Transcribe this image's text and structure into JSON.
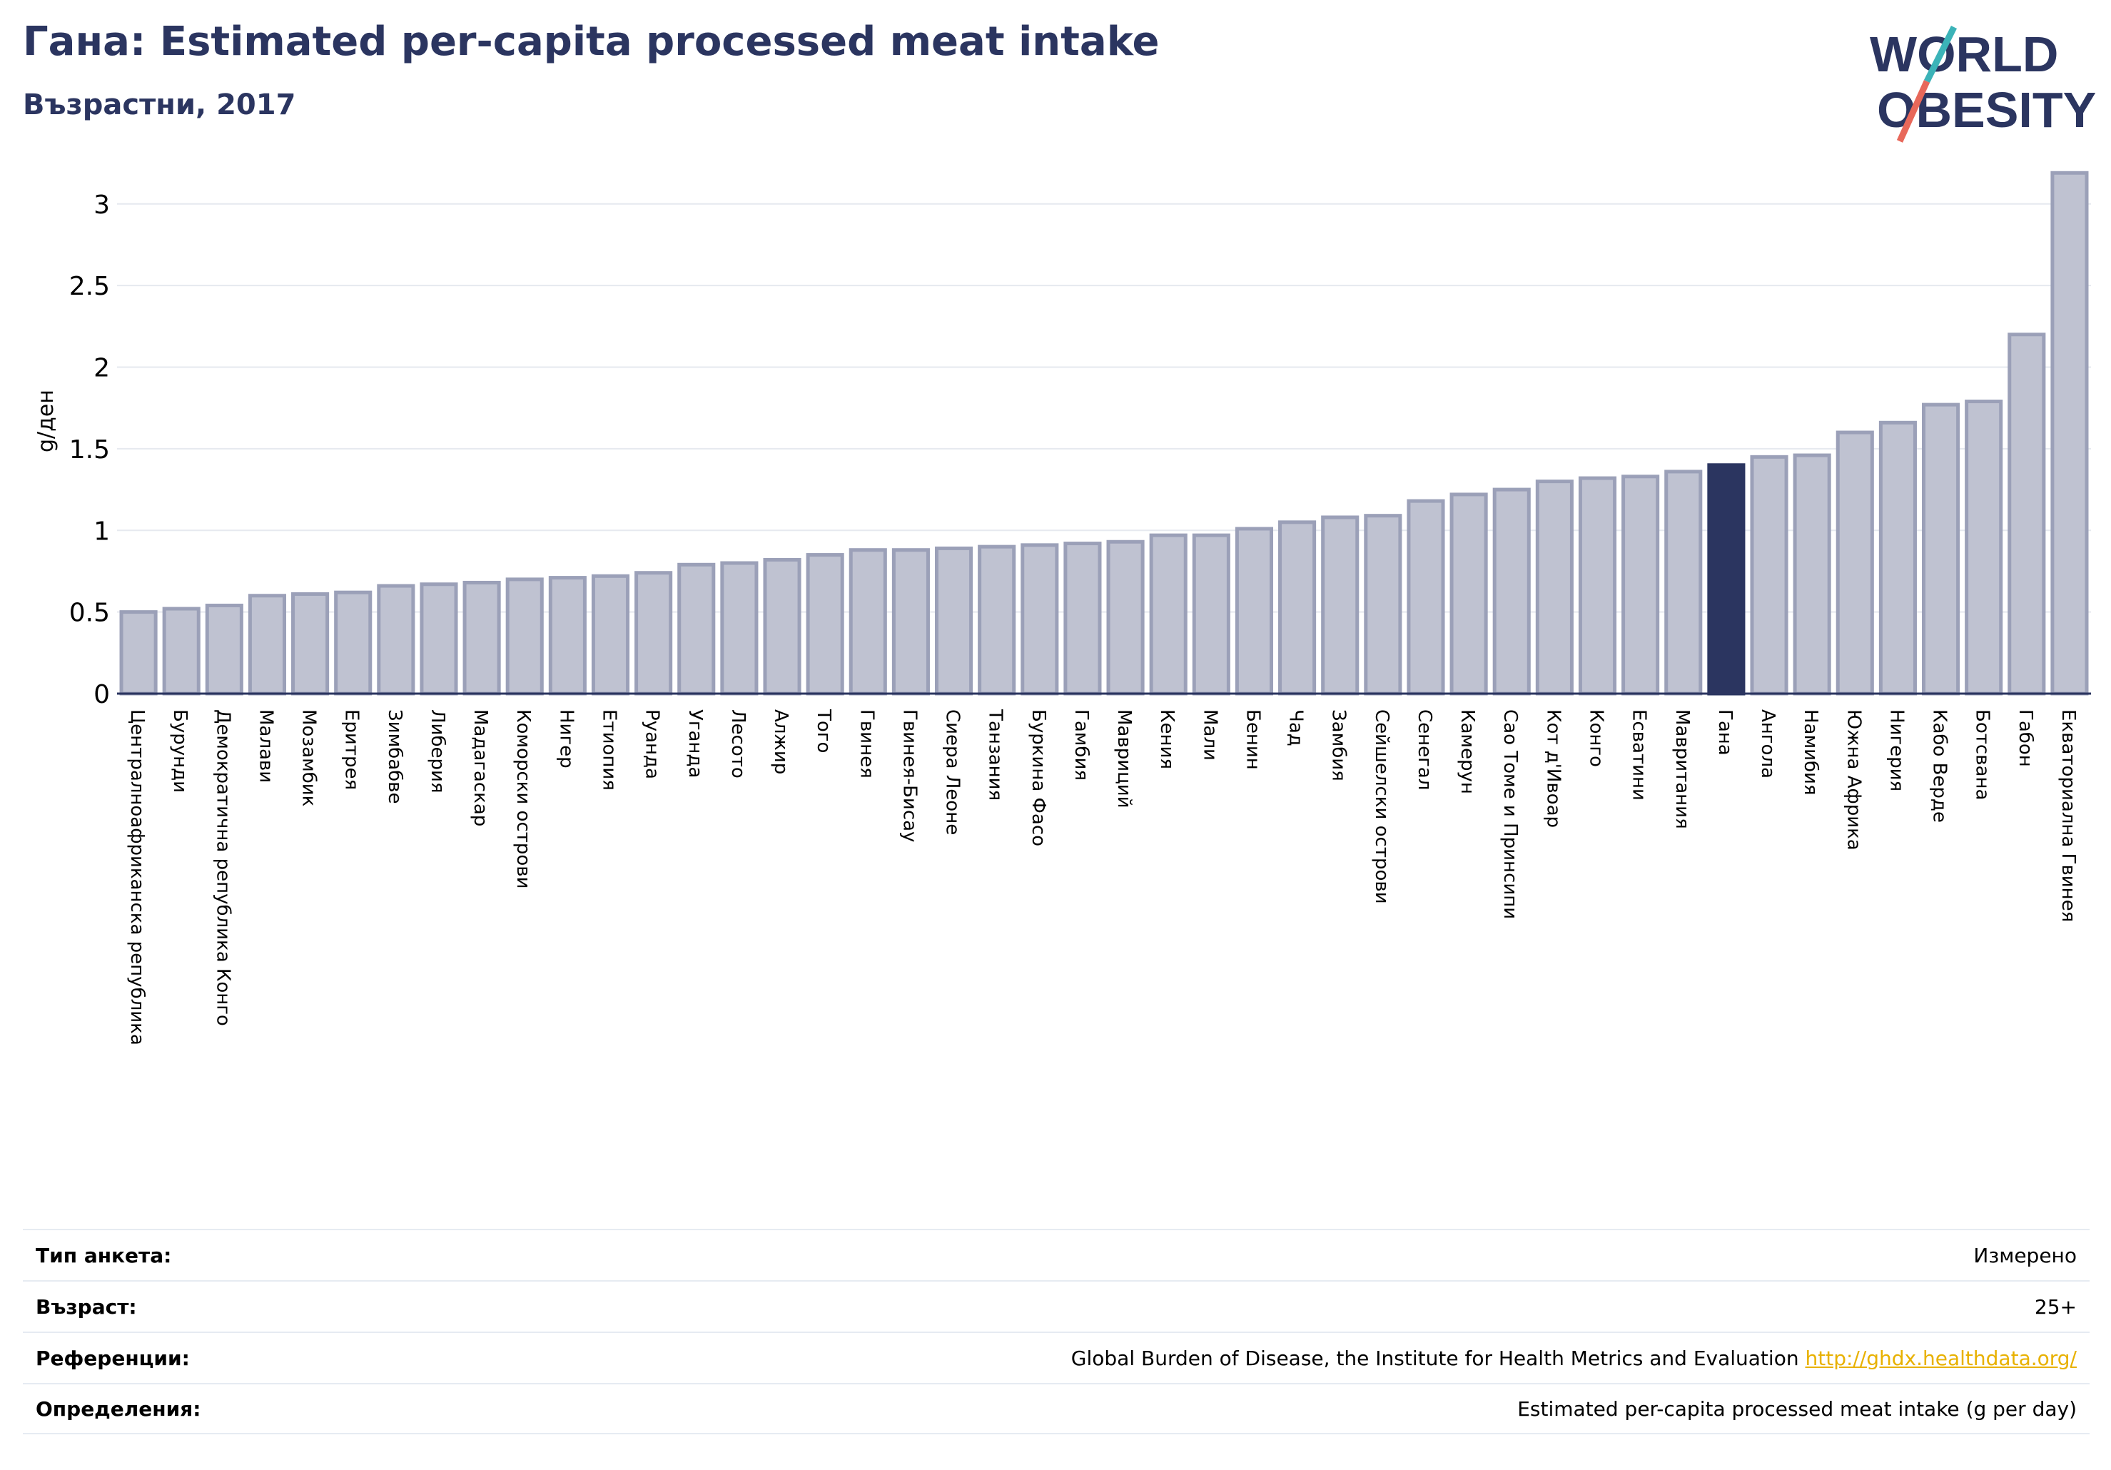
{
  "header": {
    "title": "Гана: Estimated per-capita processed meat intake",
    "subtitle": "Възрастни, 2017",
    "logo_text_1": "WORLD",
    "logo_text_2": "OBESITY"
  },
  "colors": {
    "bar": "#bfc2d1",
    "bar_stroke": "#9ba0b8",
    "highlight": "#2b3560",
    "title": "#2b3560",
    "grid": "#e6e9ef",
    "logo_teal": "#3bb3b8",
    "logo_red": "#e8685a"
  },
  "chart_data": {
    "type": "bar",
    "ylabel": "g/ден",
    "ylim": [
      0,
      3.2
    ],
    "yticks": [
      0,
      0.5,
      1,
      1.5,
      2,
      2.5,
      3
    ],
    "ytick_labels": [
      "0",
      "0.5",
      "1",
      "1.5",
      "2",
      "2.5",
      "3"
    ],
    "highlight": "Гана",
    "grid": true,
    "categories": [
      "Централноафриканска република",
      "Бурунди",
      "Демократична република Конго",
      "Малави",
      "Мозамбик",
      "Еритрея",
      "Зимбабве",
      "Либерия",
      "Мадагаскар",
      "Коморски острови",
      "Нигер",
      "Етиопия",
      "Руанда",
      "Уганда",
      "Лесото",
      "Алжир",
      "Того",
      "Гвинея",
      "Гвинея-Бисау",
      "Сиера Леоне",
      "Танзания",
      "Буркина Фасо",
      "Гамбия",
      "Мавриций",
      "Кения",
      "Мали",
      "Бенин",
      "Чад",
      "Замбия",
      "Сейшелски острови",
      "Сенегал",
      "Камерун",
      "Сао Томе и Принсипи",
      "Кот д'Ивоар",
      "Конго",
      "Есватини",
      "Мавритания",
      "Гана",
      "Ангола",
      "Намибия",
      "Южна Африка",
      "Нигерия",
      "Кабо Верде",
      "Ботсвана",
      "Габон",
      "Екваториална Гвинея"
    ],
    "values": [
      0.5,
      0.52,
      0.54,
      0.6,
      0.61,
      0.62,
      0.66,
      0.67,
      0.68,
      0.7,
      0.71,
      0.72,
      0.74,
      0.79,
      0.8,
      0.82,
      0.85,
      0.88,
      0.88,
      0.89,
      0.9,
      0.91,
      0.92,
      0.93,
      0.97,
      0.97,
      1.01,
      1.05,
      1.08,
      1.09,
      1.18,
      1.22,
      1.25,
      1.3,
      1.32,
      1.33,
      1.36,
      1.4,
      1.45,
      1.46,
      1.6,
      1.66,
      1.77,
      1.79,
      2.2,
      3.19
    ]
  },
  "info": {
    "survey_label": "Тип анкета:",
    "survey_value": "Измерено",
    "age_label": "Възраст:",
    "age_value": "25+",
    "ref_label": "Референции:",
    "ref_value": "Global Burden of Disease, the Institute for Health Metrics and Evaluation",
    "ref_link": "http://ghdx.healthdata.org/",
    "def_label": "Определения:",
    "def_value": "Estimated per-capita processed meat intake (g per day)"
  }
}
